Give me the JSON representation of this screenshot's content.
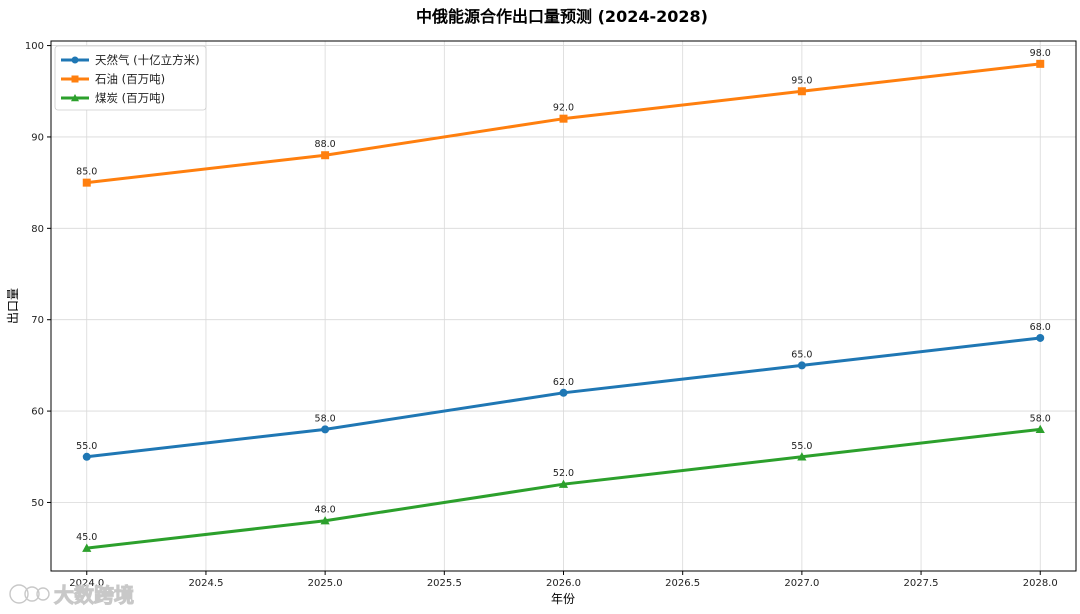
{
  "chart_data": {
    "type": "line",
    "title": "中俄能源合作出口量预测 (2024-2028)",
    "xlabel": "年份",
    "ylabel": "出口量",
    "xlim": [
      2023.85,
      2028.15
    ],
    "ylim": [
      42.5,
      100.5
    ],
    "x_ticks": [
      2024.0,
      2024.5,
      2025.0,
      2025.5,
      2026.0,
      2026.5,
      2027.0,
      2027.5,
      2028.0
    ],
    "x_tick_labels": [
      "2024.0",
      "2024.5",
      "2025.0",
      "2025.5",
      "2026.0",
      "2026.5",
      "2027.0",
      "2027.5",
      "2028.0"
    ],
    "y_ticks": [
      50,
      60,
      70,
      80,
      90,
      100
    ],
    "y_tick_labels": [
      "50",
      "60",
      "70",
      "80",
      "90",
      "100"
    ],
    "grid": true,
    "legend_position": "top-left",
    "x": [
      2024,
      2025,
      2026,
      2027,
      2028
    ],
    "series": [
      {
        "name": "天然气 (十亿立方米)",
        "values": [
          55.0,
          58.0,
          62.0,
          65.0,
          68.0
        ],
        "labels": [
          "55.0",
          "58.0",
          "62.0",
          "65.0",
          "68.0"
        ],
        "color": "#1f77b4",
        "marker": "circle"
      },
      {
        "name": "石油 (百万吨)",
        "values": [
          85.0,
          88.0,
          92.0,
          95.0,
          98.0
        ],
        "labels": [
          "85.0",
          "88.0",
          "92.0",
          "95.0",
          "98.0"
        ],
        "color": "#ff7f0e",
        "marker": "square"
      },
      {
        "name": "煤炭 (百万吨)",
        "values": [
          45.0,
          48.0,
          52.0,
          55.0,
          58.0
        ],
        "labels": [
          "45.0",
          "48.0",
          "52.0",
          "55.0",
          "58.0"
        ],
        "color": "#2ca02c",
        "marker": "triangle"
      }
    ]
  },
  "watermark": {
    "text": "大数跨境",
    "logo_icon": "crossborder-logo-icon"
  }
}
